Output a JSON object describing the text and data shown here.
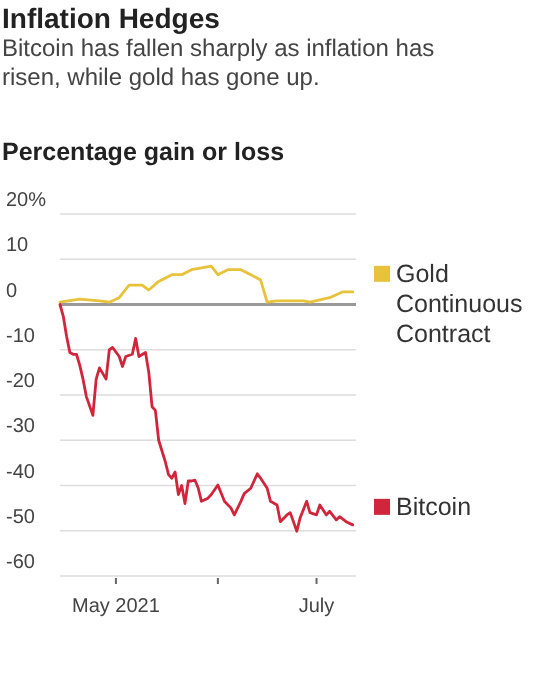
{
  "chart_data": {
    "type": "line",
    "title": "Inflation Hedges",
    "subtitle": "Bitcoin has fallen sharply as inflation has risen, while gold has gone up.",
    "ylabel": "Percentage gain or loss",
    "ylim": [
      -60,
      20
    ],
    "yticks": [
      {
        "value": 20,
        "label": "20%"
      },
      10,
      0,
      -10,
      -20,
      -30,
      -40,
      -50,
      -60
    ],
    "xlim": [
      "2021-04-14",
      "2021-07-13"
    ],
    "xticks": [
      {
        "value": "2021-05-01",
        "label": "May 2021"
      },
      {
        "value": "2021-06-01",
        "label": null
      },
      {
        "value": "2021-07-01",
        "label": "July"
      }
    ],
    "grid": "y",
    "legend": "right",
    "series": [
      {
        "name": "Gold Continuous Contract",
        "color": "#e8c23a",
        "x": [
          "2021-04-14",
          "2021-04-20",
          "2021-04-26",
          "2021-04-29",
          "2021-05-02",
          "2021-05-05",
          "2021-05-09",
          "2021-05-11",
          "2021-05-14",
          "2021-05-18",
          "2021-05-21",
          "2021-05-24",
          "2021-05-30",
          "2021-06-01",
          "2021-06-04",
          "2021-06-08",
          "2021-06-11",
          "2021-06-14",
          "2021-06-16",
          "2021-06-19",
          "2021-06-27",
          "2021-06-29",
          "2021-07-05",
          "2021-07-09",
          "2021-07-12"
        ],
        "values": [
          0.5,
          1.2,
          0.8,
          0.5,
          1.5,
          4.3,
          4.3,
          3.2,
          5.1,
          6.6,
          6.6,
          7.7,
          8.5,
          6.6,
          7.7,
          7.7,
          6.6,
          5.4,
          0.5,
          0.8,
          0.8,
          0.5,
          1.5,
          2.8,
          2.8
        ]
      },
      {
        "name": "Bitcoin",
        "color": "#d0253a",
        "x": [
          "2021-04-14",
          "2021-04-15",
          "2021-04-16",
          "2021-04-17",
          "2021-04-18",
          "2021-04-19",
          "2021-04-20",
          "2021-04-21",
          "2021-04-22",
          "2021-04-24",
          "2021-04-25",
          "2021-04-26",
          "2021-04-28",
          "2021-04-29",
          "2021-04-30",
          "2021-05-02",
          "2021-05-03",
          "2021-05-04",
          "2021-05-06",
          "2021-05-07",
          "2021-05-08",
          "2021-05-10",
          "2021-05-11",
          "2021-05-12",
          "2021-05-13",
          "2021-05-14",
          "2021-05-16",
          "2021-05-17",
          "2021-05-18",
          "2021-05-19",
          "2021-05-20",
          "2021-05-21",
          "2021-05-22",
          "2021-05-23",
          "2021-05-24",
          "2021-05-25",
          "2021-05-26",
          "2021-05-27",
          "2021-05-29",
          "2021-05-30",
          "2021-06-01",
          "2021-06-03",
          "2021-06-05",
          "2021-06-06",
          "2021-06-08",
          "2021-06-09",
          "2021-06-11",
          "2021-06-13",
          "2021-06-14",
          "2021-06-16",
          "2021-06-17",
          "2021-06-19",
          "2021-06-20",
          "2021-06-22",
          "2021-06-23",
          "2021-06-25",
          "2021-06-26",
          "2021-06-28",
          "2021-06-29",
          "2021-07-01",
          "2021-07-02",
          "2021-07-04",
          "2021-07-05",
          "2021-07-07",
          "2021-07-08",
          "2021-07-10",
          "2021-07-12"
        ],
        "values": [
          0,
          -2.6,
          -7,
          -10.6,
          -11,
          -11,
          -13.4,
          -16.5,
          -20.3,
          -24.5,
          -16.5,
          -14,
          -16.5,
          -10,
          -9.5,
          -11.5,
          -13.7,
          -11.5,
          -11,
          -7.5,
          -11.5,
          -10.6,
          -15,
          -22.6,
          -23.4,
          -30,
          -34.7,
          -37.6,
          -38.4,
          -37,
          -42,
          -40,
          -44,
          -39,
          -39,
          -38.8,
          -40.5,
          -43.5,
          -42.8,
          -42,
          -39.9,
          -43.5,
          -45,
          -46.5,
          -43.5,
          -41.8,
          -40.6,
          -37.4,
          -38.4,
          -40.6,
          -43.5,
          -44.3,
          -48,
          -46.5,
          -46,
          -50.1,
          -47.2,
          -43.5,
          -46,
          -46.5,
          -44.3,
          -46.5,
          -45.7,
          -47.6,
          -46.9,
          -48,
          -48.7
        ]
      }
    ]
  }
}
